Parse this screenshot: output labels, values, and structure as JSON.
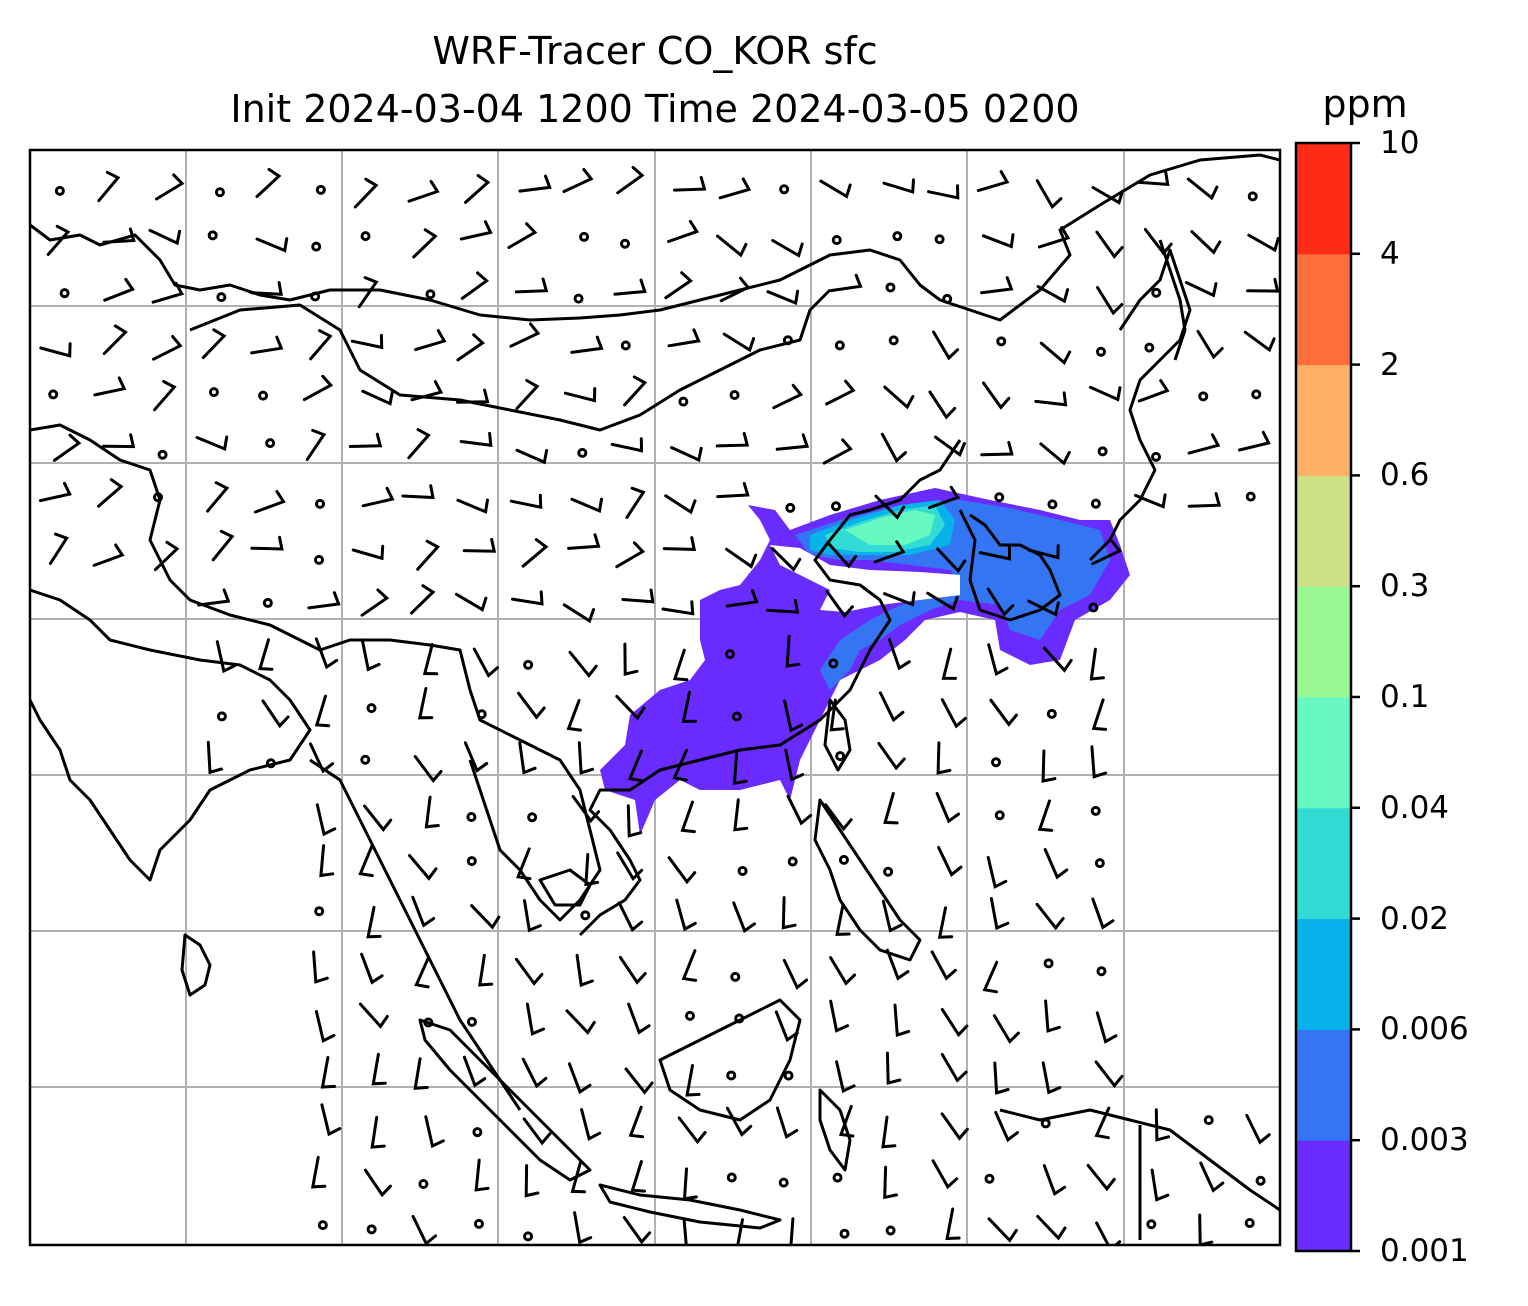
{
  "title": {
    "line1": "WRF-Tracer CO_KOR sfc",
    "line2": "Init 2024-03-04 1200 Time 2024-03-05 0200"
  },
  "colorbar": {
    "unit": "ppm",
    "levels": [
      "0.001",
      "0.003",
      "0.006",
      "0.02",
      "0.04",
      "0.1",
      "0.3",
      "0.6",
      "2",
      "4",
      "10"
    ],
    "colors": [
      "#6a2bff",
      "#3375f2",
      "#07b2ea",
      "#32dbd3",
      "#66f9c2",
      "#98f993",
      "#cfe186",
      "#feb165",
      "#fe6f3c",
      "#fe2b16"
    ]
  },
  "map": {
    "gridlines": true,
    "field": "CO_KOR tracer concentration (ppm)",
    "wind_barbs": true
  }
}
